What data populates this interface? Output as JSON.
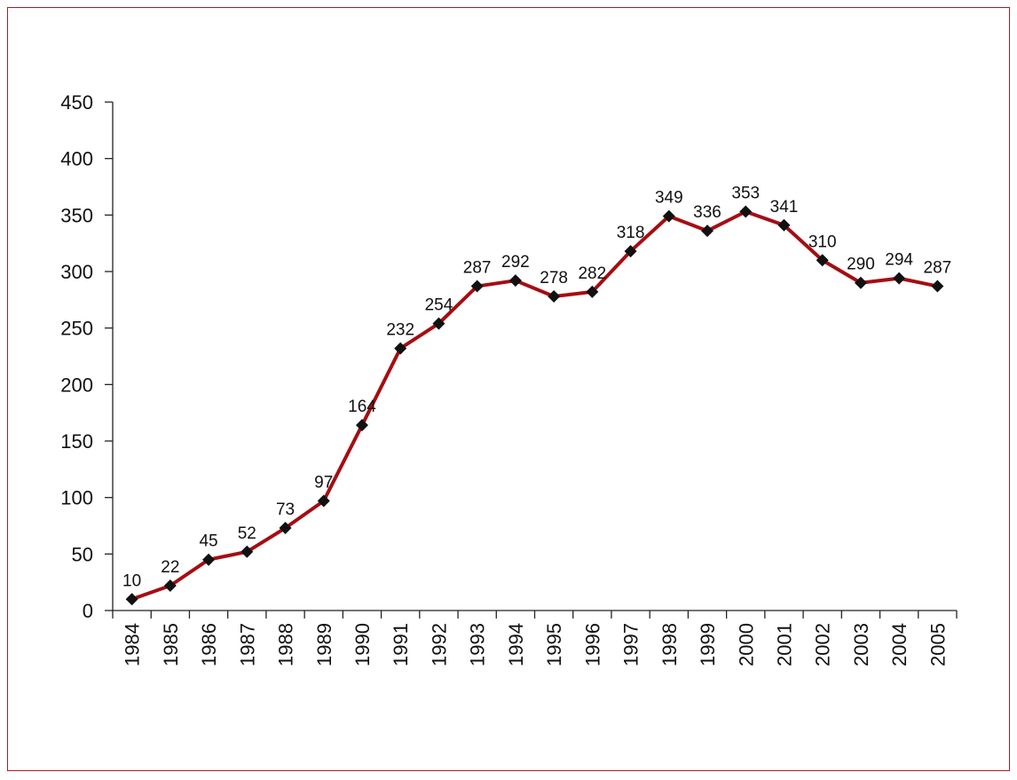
{
  "chart_data": {
    "type": "line",
    "title": "",
    "xlabel": "",
    "ylabel": "",
    "categories": [
      "1984",
      "1985",
      "1986",
      "1987",
      "1988",
      "1989",
      "1990",
      "1991",
      "1992",
      "1993",
      "1994",
      "1995",
      "1996",
      "1997",
      "1998",
      "1999",
      "2000",
      "2001",
      "2002",
      "2003",
      "2004",
      "2005"
    ],
    "values": [
      10,
      22,
      45,
      52,
      73,
      97,
      164,
      232,
      254,
      287,
      292,
      278,
      282,
      318,
      349,
      336,
      353,
      341,
      310,
      290,
      294,
      287
    ],
    "data_labels": [
      "10",
      "22",
      "45",
      "52",
      "73",
      "97",
      "164",
      "232",
      "254",
      "287",
      "292",
      "278",
      "282",
      "318",
      "349",
      "336",
      "353",
      "341",
      "310",
      "290",
      "294",
      "287"
    ],
    "ylim": [
      0,
      450
    ],
    "yticks": [
      "0",
      "50",
      "100",
      "150",
      "200",
      "250",
      "300",
      "350",
      "400",
      "450"
    ],
    "grid": false,
    "legend": "none",
    "marker": "diamond",
    "colors": {
      "line": "#a50d12",
      "marker": "#111111",
      "axis": "#222222",
      "frame": "#a81b2a"
    }
  }
}
